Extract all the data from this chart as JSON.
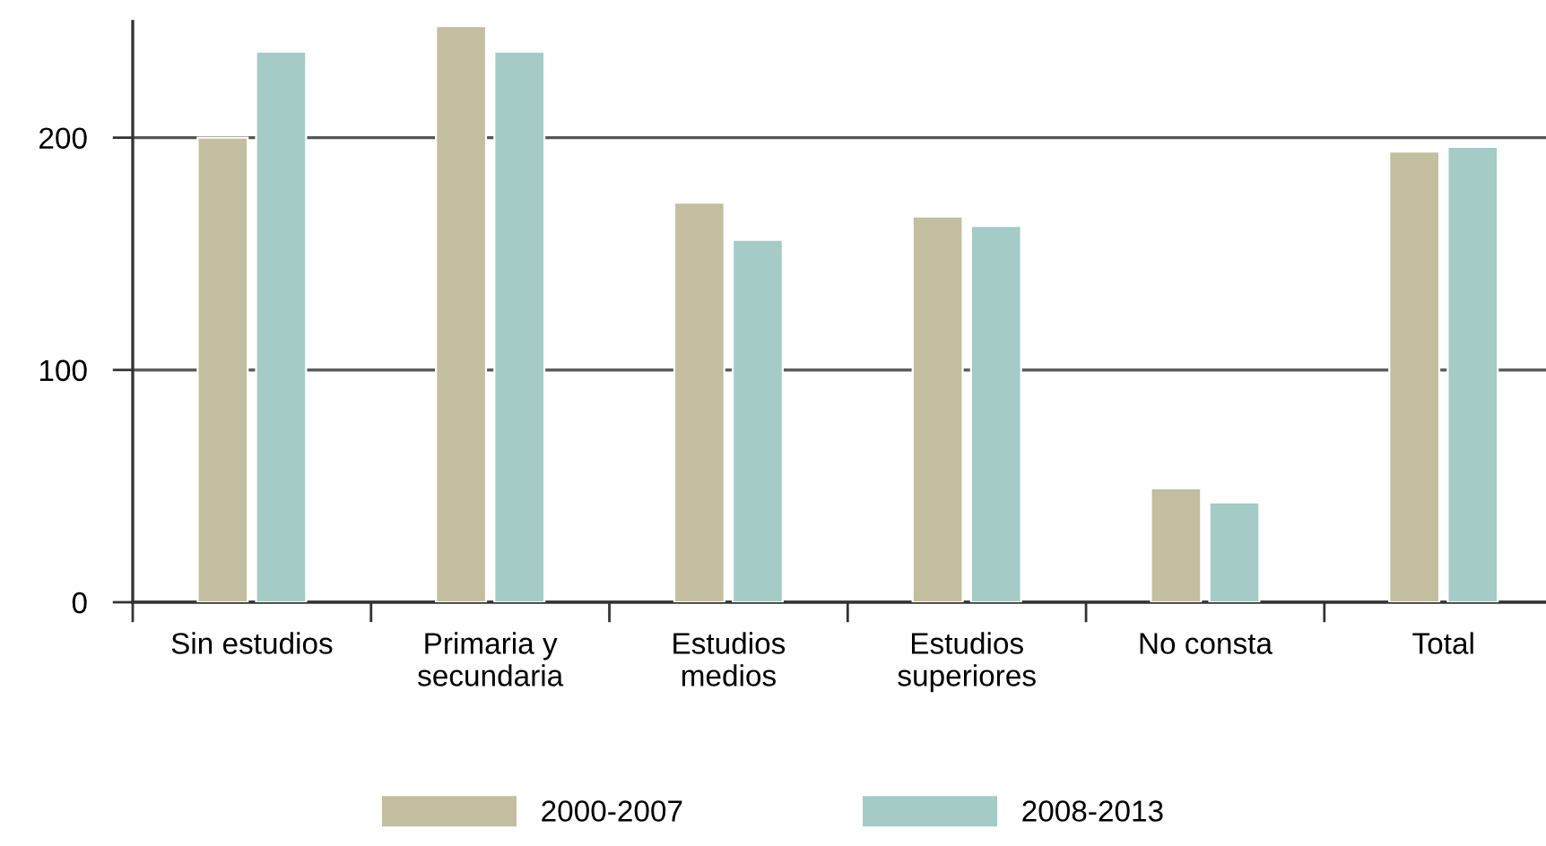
{
  "chart_data": {
    "type": "bar",
    "categories": [
      "Sin estudios",
      "Primaria y\nsecundaria",
      "Estudios\nmedios",
      "Estudios\nsuperiores",
      "No consta",
      "Total"
    ],
    "series": [
      {
        "name": "2000-2007",
        "color": "#c3be9f",
        "values": [
          200,
          248,
          172,
          166,
          49,
          194
        ]
      },
      {
        "name": "2008-2013",
        "color": "#a4cbc6",
        "values": [
          237,
          237,
          156,
          162,
          43,
          196
        ]
      }
    ],
    "ylim": [
      0,
      250
    ],
    "yticks": [
      0,
      100,
      200
    ],
    "grid": "y",
    "legend": "bottom"
  }
}
